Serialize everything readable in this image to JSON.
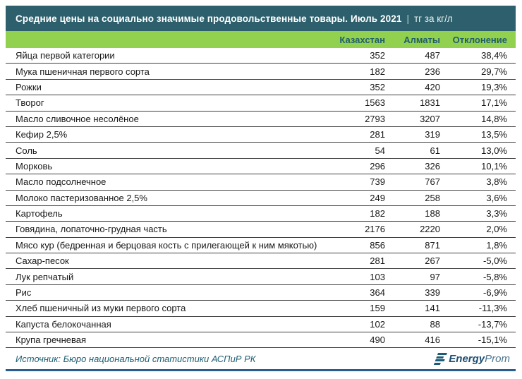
{
  "title_bar": {
    "text": "Средние цены на социально значимые продовольственные товары. Июль 2021",
    "separator": "|",
    "unit": "тг за кг/л"
  },
  "header": {
    "product": "",
    "kazakhstan": "Казахстан",
    "almaty": "Алматы",
    "deviation": "Отклонение"
  },
  "footer": {
    "source": "Источник: Бюро национальной статистики АСПиР РК",
    "logo_bold": "Energy",
    "logo_light": "Prom"
  },
  "colors": {
    "title_bg": "#2d5f6c",
    "header_bg": "#92d050",
    "header_text": "#1f5e6d",
    "row_border": "#404040",
    "source_text": "#1f6076",
    "accent_line": "#2a5d8f",
    "logo_navy": "#1c4e72"
  },
  "chart_data": {
    "type": "table",
    "title": "Средние цены на социально значимые продовольственные товары. Июль 2021",
    "unit": "тг за кг/л",
    "columns": [
      "",
      "Казахстан",
      "Алматы",
      "Отклонение"
    ],
    "rows": [
      {
        "name": "Яйца первой категории",
        "kazakhstan": 352,
        "almaty": 487,
        "deviation_pct": 38.4,
        "deviation_label": "38,4%"
      },
      {
        "name": "Мука пшеничная первого сорта",
        "kazakhstan": 182,
        "almaty": 236,
        "deviation_pct": 29.7,
        "deviation_label": "29,7%"
      },
      {
        "name": "Рожки",
        "kazakhstan": 352,
        "almaty": 420,
        "deviation_pct": 19.3,
        "deviation_label": "19,3%"
      },
      {
        "name": "Творог",
        "kazakhstan": 1563,
        "almaty": 1831,
        "deviation_pct": 17.1,
        "deviation_label": "17,1%"
      },
      {
        "name": "Масло сливочное несолёное",
        "kazakhstan": 2793,
        "almaty": 3207,
        "deviation_pct": 14.8,
        "deviation_label": "14,8%"
      },
      {
        "name": "Кефир 2,5%",
        "kazakhstan": 281,
        "almaty": 319,
        "deviation_pct": 13.5,
        "deviation_label": "13,5%"
      },
      {
        "name": "Соль",
        "kazakhstan": 54,
        "almaty": 61,
        "deviation_pct": 13.0,
        "deviation_label": "13,0%"
      },
      {
        "name": "Морковь",
        "kazakhstan": 296,
        "almaty": 326,
        "deviation_pct": 10.1,
        "deviation_label": "10,1%"
      },
      {
        "name": "Масло подсолнечное",
        "kazakhstan": 739,
        "almaty": 767,
        "deviation_pct": 3.8,
        "deviation_label": "3,8%"
      },
      {
        "name": "Молоко пастеризованное 2,5%",
        "kazakhstan": 249,
        "almaty": 258,
        "deviation_pct": 3.6,
        "deviation_label": "3,6%"
      },
      {
        "name": "Картофель",
        "kazakhstan": 182,
        "almaty": 188,
        "deviation_pct": 3.3,
        "deviation_label": "3,3%"
      },
      {
        "name": "Говядина, лопаточно-грудная часть",
        "kazakhstan": 2176,
        "almaty": 2220,
        "deviation_pct": 2.0,
        "deviation_label": "2,0%"
      },
      {
        "name": "Мясо кур (бедренная и берцовая кость с прилегающей к ним мякотью)",
        "kazakhstan": 856,
        "almaty": 871,
        "deviation_pct": 1.8,
        "deviation_label": "1,8%"
      },
      {
        "name": "Сахар-песок",
        "kazakhstan": 281,
        "almaty": 267,
        "deviation_pct": -5.0,
        "deviation_label": "-5,0%"
      },
      {
        "name": "Лук репчатый",
        "kazakhstan": 103,
        "almaty": 97,
        "deviation_pct": -5.8,
        "deviation_label": "-5,8%"
      },
      {
        "name": "Рис",
        "kazakhstan": 364,
        "almaty": 339,
        "deviation_pct": -6.9,
        "deviation_label": "-6,9%"
      },
      {
        "name": "Хлеб пшеничный из муки первого сорта",
        "kazakhstan": 159,
        "almaty": 141,
        "deviation_pct": -11.3,
        "deviation_label": "-11,3%"
      },
      {
        "name": "Капуста белокочанная",
        "kazakhstan": 102,
        "almaty": 88,
        "deviation_pct": -13.7,
        "deviation_label": "-13,7%"
      },
      {
        "name": "Крупа гречневая",
        "kazakhstan": 490,
        "almaty": 416,
        "deviation_pct": -15.1,
        "deviation_label": "-15,1%"
      }
    ]
  }
}
